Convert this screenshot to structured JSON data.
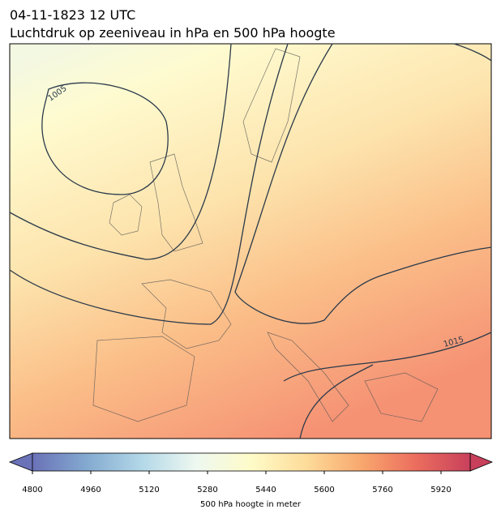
{
  "header": {
    "title": "04-11-1823 12 UTC",
    "subtitle": "Luchtdruk op zeeniveau in hPa en 500 hPa hoogte"
  },
  "map": {
    "contour_labels": [
      "1005",
      "1015"
    ]
  },
  "colorbar": {
    "label": "500 hPa hoogte in meter",
    "lim": [
      4800,
      6000
    ],
    "ticks": [
      4800,
      4960,
      5120,
      5280,
      5440,
      5600,
      5760,
      5920
    ],
    "colors": [
      "#6a72b8",
      "#84aad0",
      "#b3d8e8",
      "#eef8f0",
      "#fefbc8",
      "#fddc9a",
      "#f8a86e",
      "#ec6e5e",
      "#c8405c"
    ]
  }
}
